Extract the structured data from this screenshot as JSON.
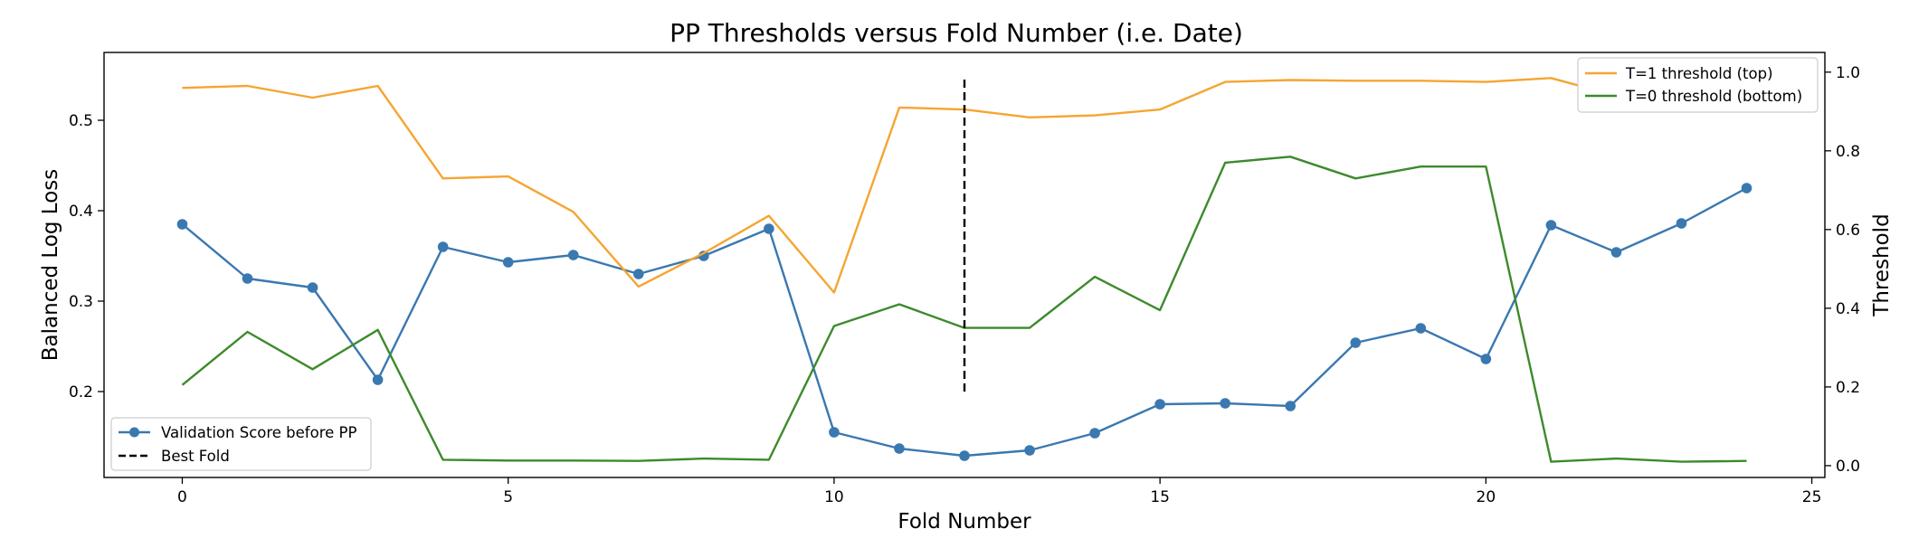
{
  "chart_data": {
    "type": "line",
    "title": "PP Thresholds versus Fold Number (i.e. Date)",
    "xlabel": "Fold Number",
    "ylabel_left": "Balanced Log Loss",
    "ylabel_right": "Threshold",
    "xlim": [
      -1.2,
      25.2
    ],
    "ylim_left": [
      0.105,
      0.575
    ],
    "ylim_right": [
      -0.03,
      1.05
    ],
    "x_ticks": [
      0,
      5,
      10,
      15,
      20,
      25
    ],
    "y_left_ticks": [
      0.2,
      0.3,
      0.4,
      0.5
    ],
    "y_right_ticks": [
      0.0,
      0.2,
      0.4,
      0.6,
      0.8,
      1.0
    ],
    "grid": false,
    "x": [
      0,
      1,
      2,
      3,
      4,
      5,
      6,
      7,
      8,
      9,
      10,
      11,
      12,
      13,
      14,
      15,
      16,
      17,
      18,
      19,
      20,
      21,
      22,
      23,
      24
    ],
    "series": [
      {
        "name": "Validation Score before PP",
        "axis": "left",
        "color": "#3a78b0",
        "marker": "circle",
        "values": [
          0.385,
          0.325,
          0.315,
          0.213,
          0.36,
          0.343,
          0.351,
          0.33,
          0.35,
          0.38,
          0.155,
          0.137,
          0.129,
          0.135,
          0.154,
          0.186,
          0.187,
          0.184,
          0.254,
          0.27,
          0.236,
          0.384,
          0.354,
          0.386,
          0.425
        ]
      },
      {
        "name": "T=1 threshold (top)",
        "axis": "right",
        "color": "#f5a532",
        "marker": "none",
        "values": [
          0.96,
          0.965,
          0.935,
          0.965,
          0.73,
          0.735,
          0.645,
          0.455,
          0.54,
          0.635,
          0.44,
          0.91,
          0.905,
          0.885,
          0.89,
          0.905,
          0.975,
          0.98,
          0.978,
          0.978,
          0.975,
          0.985,
          0.94,
          0.93,
          0.925
        ]
      },
      {
        "name": "T=0 threshold (bottom)",
        "axis": "right",
        "color": "#3d8a2c",
        "marker": "none",
        "values": [
          0.205,
          0.34,
          0.245,
          0.345,
          0.015,
          0.013,
          0.013,
          0.012,
          0.018,
          0.015,
          0.355,
          0.41,
          0.35,
          0.35,
          0.48,
          0.395,
          0.77,
          0.785,
          0.73,
          0.76,
          0.76,
          0.01,
          0.018,
          0.01,
          0.012
        ]
      }
    ],
    "best_fold": {
      "name": "Best Fold",
      "x": 12,
      "y_from": 0.2,
      "y_to": 0.55,
      "axis": "left",
      "color": "#000000",
      "style": "dashed"
    },
    "legends": {
      "upper_right": [
        "T=1 threshold (top)",
        "T=0 threshold (bottom)"
      ],
      "lower_left": [
        "Validation Score before PP",
        "Best Fold"
      ]
    }
  }
}
